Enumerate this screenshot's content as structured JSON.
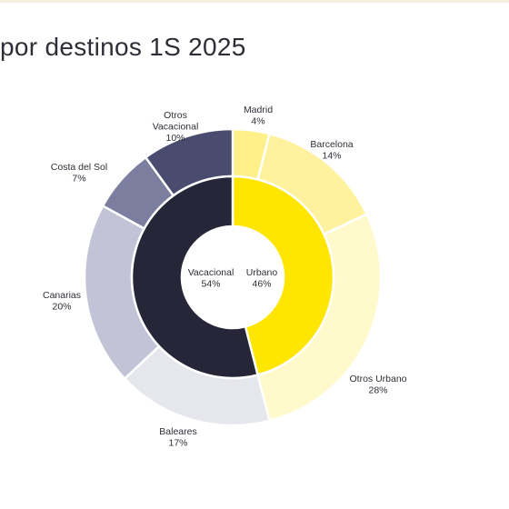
{
  "title": "por destinos 1S 2025",
  "chart_data": {
    "type": "pie",
    "subtype": "donut-sunburst",
    "inner_ring": {
      "slices": [
        {
          "label": "Urbano",
          "value": 46,
          "value_label": "46%",
          "color": "#ffe600"
        },
        {
          "label": "Vacacional",
          "value": 54,
          "value_label": "54%",
          "color": "#262638"
        }
      ]
    },
    "outer_ring": {
      "slices": [
        {
          "label": [
            "Madrid"
          ],
          "value": 4,
          "value_label": "4%",
          "color": "#fff08a",
          "parent": "Urbano"
        },
        {
          "label": [
            "Barcelona"
          ],
          "value": 14,
          "value_label": "14%",
          "color": "#fff29e",
          "parent": "Urbano"
        },
        {
          "label": [
            "Otros Urbano"
          ],
          "value": 28,
          "value_label": "28%",
          "color": "#fff9cc",
          "parent": "Urbano"
        },
        {
          "label": [
            "Baleares"
          ],
          "value": 17,
          "value_label": "17%",
          "color": "#e6e6ed",
          "parent": "Vacacional"
        },
        {
          "label": [
            "Canarias"
          ],
          "value": 20,
          "value_label": "20%",
          "color": "#c2c3d6",
          "parent": "Vacacional"
        },
        {
          "label": [
            "Costa del Sol"
          ],
          "value": 7,
          "value_label": "7%",
          "color": "#7c7e9f",
          "parent": "Vacacional"
        },
        {
          "label": [
            "Otros",
            "Vacacional"
          ],
          "value": 10,
          "value_label": "10%",
          "color": "#4a4c6f",
          "parent": "Vacacional"
        }
      ]
    }
  }
}
